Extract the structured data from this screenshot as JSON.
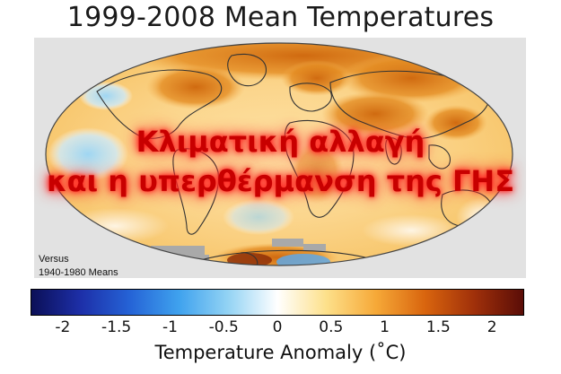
{
  "map": {
    "title": "1999-2008 Mean Temperatures",
    "overlay_line1": "Κλιματική αλλαγή",
    "overlay_line2": "και η υπερθέρμανση της ΓΗΣ",
    "comparison_line1": "Versus",
    "comparison_line2": "1940-1980 Means",
    "projection": "Mollweide",
    "colors": {
      "background": "#e2e2e2",
      "land_outline": "#333333",
      "no_data": "#a9a9a9",
      "overlay_text": "#c80000"
    }
  },
  "colorbar": {
    "label": "Temperature Anomaly (˚C)",
    "ticks": [
      "-2",
      "-1.5",
      "-1",
      "-0.5",
      "0",
      "0.5",
      "1",
      "1.5",
      "2"
    ],
    "tick_values": [
      -2,
      -1.5,
      -1,
      -0.5,
      0,
      0.5,
      1,
      1.5,
      2
    ],
    "range": [
      -2.3,
      2.3
    ],
    "stops": [
      "#0b0f57",
      "#1d2fa8",
      "#2563d6",
      "#3fa2ee",
      "#93d3f4",
      "#ffffff",
      "#fde08a",
      "#f6a938",
      "#d9650e",
      "#a0300a",
      "#5a0d07"
    ]
  }
}
